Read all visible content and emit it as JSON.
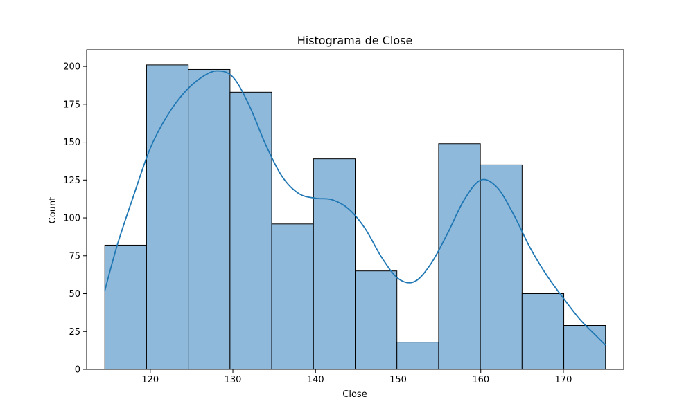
{
  "chart_data": {
    "type": "bar",
    "title": "Histograma de Close",
    "xlabel": "Close",
    "ylabel": "Count",
    "xlim": [
      112.3,
      177.3
    ],
    "ylim": [
      0,
      211
    ],
    "xticks": [
      120,
      130,
      140,
      150,
      160,
      170
    ],
    "yticks": [
      0,
      25,
      50,
      75,
      100,
      125,
      150,
      175,
      200
    ],
    "bins": [
      {
        "x0": 114.5,
        "x1": 119.55,
        "count": 82
      },
      {
        "x0": 119.55,
        "x1": 124.6,
        "count": 201
      },
      {
        "x0": 124.6,
        "x1": 129.65,
        "count": 198
      },
      {
        "x0": 129.65,
        "x1": 134.7,
        "count": 183
      },
      {
        "x0": 134.7,
        "x1": 139.75,
        "count": 96
      },
      {
        "x0": 139.75,
        "x1": 144.8,
        "count": 139
      },
      {
        "x0": 144.8,
        "x1": 149.85,
        "count": 65
      },
      {
        "x0": 149.85,
        "x1": 154.9,
        "count": 18
      },
      {
        "x0": 154.9,
        "x1": 159.95,
        "count": 149
      },
      {
        "x0": 159.95,
        "x1": 165.0,
        "count": 135
      },
      {
        "x0": 165.0,
        "x1": 170.05,
        "count": 50
      },
      {
        "x0": 170.05,
        "x1": 175.1,
        "count": 29
      }
    ],
    "kde": {
      "x": [
        114.5,
        116,
        118,
        120,
        122,
        124,
        126,
        128,
        130,
        132,
        134,
        136,
        138,
        140,
        142,
        144,
        146,
        148,
        150,
        152,
        154,
        156,
        158,
        160,
        162,
        164,
        166,
        168,
        170,
        172,
        174,
        175.1
      ],
      "y": [
        52,
        82,
        115,
        146,
        167,
        182,
        192,
        197,
        193,
        174,
        148,
        127,
        116,
        113,
        112,
        106,
        93,
        74,
        60,
        58,
        70,
        90,
        112,
        125,
        120,
        102,
        80,
        62,
        47,
        33,
        22,
        16
      ]
    },
    "bar_color": "#8fb9da",
    "bar_edge_color": "#000000",
    "line_color": "#1f77b4",
    "grid": false,
    "legend": "none"
  }
}
